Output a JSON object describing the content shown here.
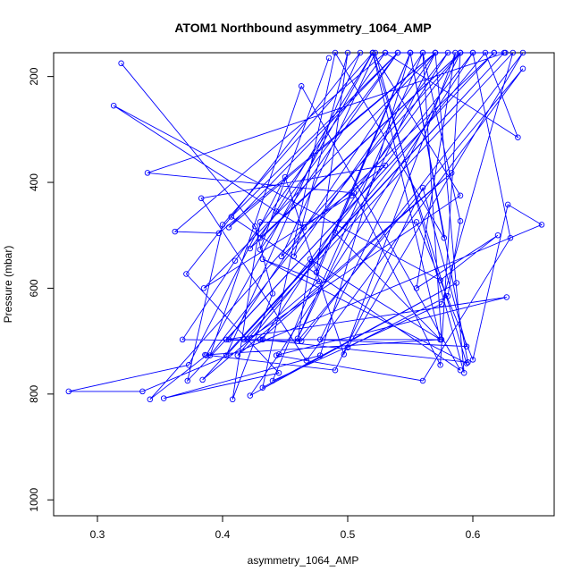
{
  "chart_data": {
    "type": "line",
    "title": "ATOM1 Northbound asymmetry_1064_AMP",
    "xlabel": "asymmetry_1064_AMP",
    "ylabel": "Pressure (mbar)",
    "xlim": [
      0.265,
      0.665
    ],
    "ylim": [
      1030,
      155
    ],
    "y_inverted": true,
    "xticks": [
      0.3,
      0.4,
      0.5,
      0.6
    ],
    "yticks": [
      200,
      400,
      600,
      800,
      1000
    ],
    "grid": false,
    "legend": "none",
    "markers": "open-circle",
    "color": "#0000ff",
    "series": [
      {
        "points": [
          [
            0.319,
            175
          ],
          [
            0.426,
            483
          ],
          [
            0.44,
            610
          ],
          [
            0.408,
            810
          ],
          [
            0.43,
            475
          ],
          [
            0.555,
            475
          ],
          [
            0.6,
            735
          ],
          [
            0.628,
            442
          ],
          [
            0.655,
            480
          ],
          [
            0.336,
            795
          ],
          [
            0.277,
            795
          ],
          [
            0.373,
            745
          ],
          [
            0.45,
            390
          ],
          [
            0.497,
            725
          ],
          [
            0.586,
            155
          ],
          [
            0.555,
            600
          ],
          [
            0.62,
            500
          ],
          [
            0.574,
            585
          ],
          [
            0.313,
            255
          ],
          [
            0.443,
            455
          ],
          [
            0.465,
            485
          ],
          [
            0.53,
            368
          ],
          [
            0.383,
            430
          ],
          [
            0.467,
            737
          ],
          [
            0.64,
            185
          ],
          [
            0.46,
            700
          ],
          [
            0.47,
            545
          ],
          [
            0.574,
            697
          ],
          [
            0.386,
            726
          ],
          [
            0.49,
            755
          ],
          [
            0.56,
            410
          ],
          [
            0.595,
            710
          ],
          [
            0.478,
            697
          ],
          [
            0.59,
            155
          ],
          [
            0.342,
            810
          ],
          [
            0.387,
            727
          ],
          [
            0.52,
            155
          ],
          [
            0.595,
            742
          ],
          [
            0.432,
            545
          ],
          [
            0.477,
            587
          ],
          [
            0.384,
            773
          ],
          [
            0.625,
            155
          ],
          [
            0.403,
            727
          ],
          [
            0.51,
            155
          ],
          [
            0.371,
            573
          ],
          [
            0.445,
            760
          ],
          [
            0.353,
            808
          ],
          [
            0.478,
            727
          ],
          [
            0.55,
            155
          ],
          [
            0.596,
            740
          ],
          [
            0.432,
            697
          ],
          [
            0.58,
            155
          ],
          [
            0.39,
            727
          ],
          [
            0.463,
            218
          ],
          [
            0.59,
            755
          ],
          [
            0.407,
            465
          ],
          [
            0.54,
            155
          ],
          [
            0.405,
            485
          ],
          [
            0.57,
            155
          ],
          [
            0.397,
            496
          ],
          [
            0.362,
            493
          ],
          [
            0.53,
            155
          ],
          [
            0.636,
            315
          ],
          [
            0.61,
            155
          ],
          [
            0.412,
            727
          ],
          [
            0.583,
            382
          ],
          [
            0.43,
            697
          ],
          [
            0.405,
            697
          ],
          [
            0.56,
            155
          ],
          [
            0.59,
            473
          ],
          [
            0.58,
            615
          ],
          [
            0.5,
            712
          ],
          [
            0.64,
            155
          ],
          [
            0.463,
            700
          ],
          [
            0.368,
            697
          ],
          [
            0.41,
            548
          ],
          [
            0.53,
            155
          ],
          [
            0.617,
            155
          ],
          [
            0.403,
            697
          ],
          [
            0.627,
            617
          ],
          [
            0.443,
            727
          ],
          [
            0.56,
            775
          ],
          [
            0.63,
            505
          ],
          [
            0.6,
            155
          ],
          [
            0.42,
            697
          ],
          [
            0.59,
            425
          ],
          [
            0.52,
            155
          ],
          [
            0.4,
            480
          ],
          [
            0.372,
            775
          ],
          [
            0.617,
            155
          ],
          [
            0.447,
            540
          ],
          [
            0.522,
            155
          ],
          [
            0.593,
            760
          ],
          [
            0.57,
            155
          ],
          [
            0.385,
            600
          ],
          [
            0.503,
            425
          ],
          [
            0.59,
            155
          ],
          [
            0.43,
            505
          ],
          [
            0.52,
            155
          ],
          [
            0.574,
            697
          ],
          [
            0.49,
            495
          ],
          [
            0.55,
            155
          ],
          [
            0.44,
            775
          ],
          [
            0.575,
            630
          ],
          [
            0.632,
            155
          ],
          [
            0.417,
            697
          ],
          [
            0.575,
            697
          ],
          [
            0.56,
            155
          ],
          [
            0.46,
            695
          ],
          [
            0.57,
            155
          ],
          [
            0.457,
            540
          ],
          [
            0.5,
            155
          ],
          [
            0.475,
            570
          ],
          [
            0.55,
            155
          ],
          [
            0.577,
            505
          ],
          [
            0.49,
            155
          ],
          [
            0.432,
            788
          ],
          [
            0.587,
            590
          ],
          [
            0.422,
            803
          ],
          [
            0.445,
            725
          ],
          [
            0.6,
            155
          ],
          [
            0.626,
            155
          ],
          [
            0.34,
            382
          ],
          [
            0.505,
            420
          ],
          [
            0.574,
            745
          ],
          [
            0.59,
            155
          ],
          [
            0.422,
            525
          ],
          [
            0.54,
            155
          ],
          [
            0.43,
            527
          ],
          [
            0.485,
            165
          ]
        ]
      }
    ]
  }
}
